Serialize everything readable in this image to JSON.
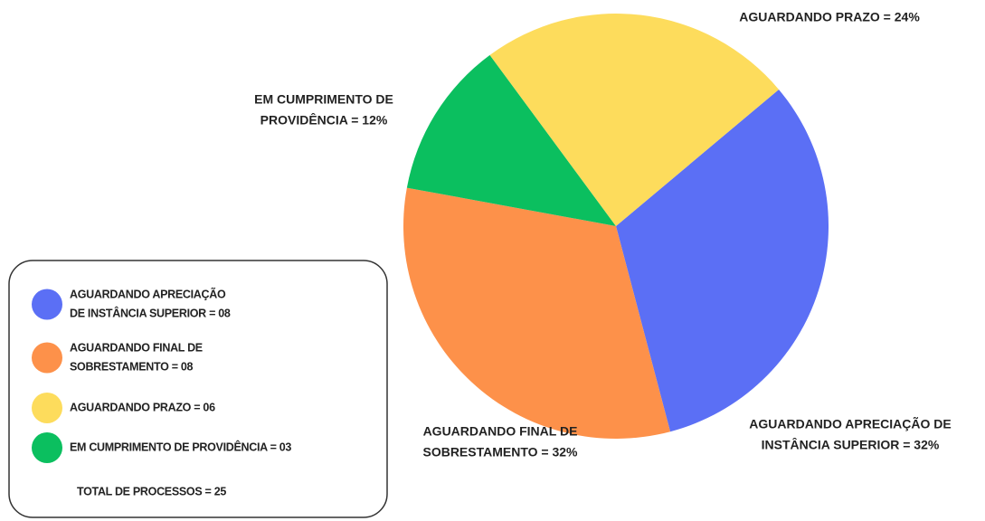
{
  "chart_data": {
    "type": "pie",
    "values": [
      32,
      32,
      12,
      24
    ],
    "colors": [
      "#5b6ff5",
      "#fd914a",
      "#0bbf5f",
      "#fddc5c"
    ],
    "value_labels": [
      [
        "AGUARDANDO APRECIAÇÃO DE",
        "INSTÂNCIA SUPERIOR = 32%"
      ],
      [
        "AGUARDANDO FINAL DE",
        "SOBRESTAMENTO = 32%"
      ],
      [
        "EM CUMPRIMENTO DE",
        "PROVIDÊNCIA = 12%"
      ],
      [
        "AGUARDANDO PRAZO = 24%"
      ]
    ],
    "legend": [
      {
        "label": [
          "AGUARDANDO APRECIAÇÃO",
          "DE INSTÂNCIA SUPERIOR = 08"
        ],
        "color": "#5b6ff5"
      },
      {
        "label": [
          "AGUARDANDO FINAL DE",
          "SOBRESTAMENTO = 08"
        ],
        "color": "#fd914a"
      },
      {
        "label": [
          "AGUARDANDO PRAZO = 06"
        ],
        "color": "#fddc5c"
      },
      {
        "label": [
          "EM CUMPRIMENTO DE PROVIDÊNCIA = 03"
        ],
        "color": "#0bbf5f"
      }
    ],
    "legend_note": "TOTAL DE PROCESSOS = 25"
  }
}
